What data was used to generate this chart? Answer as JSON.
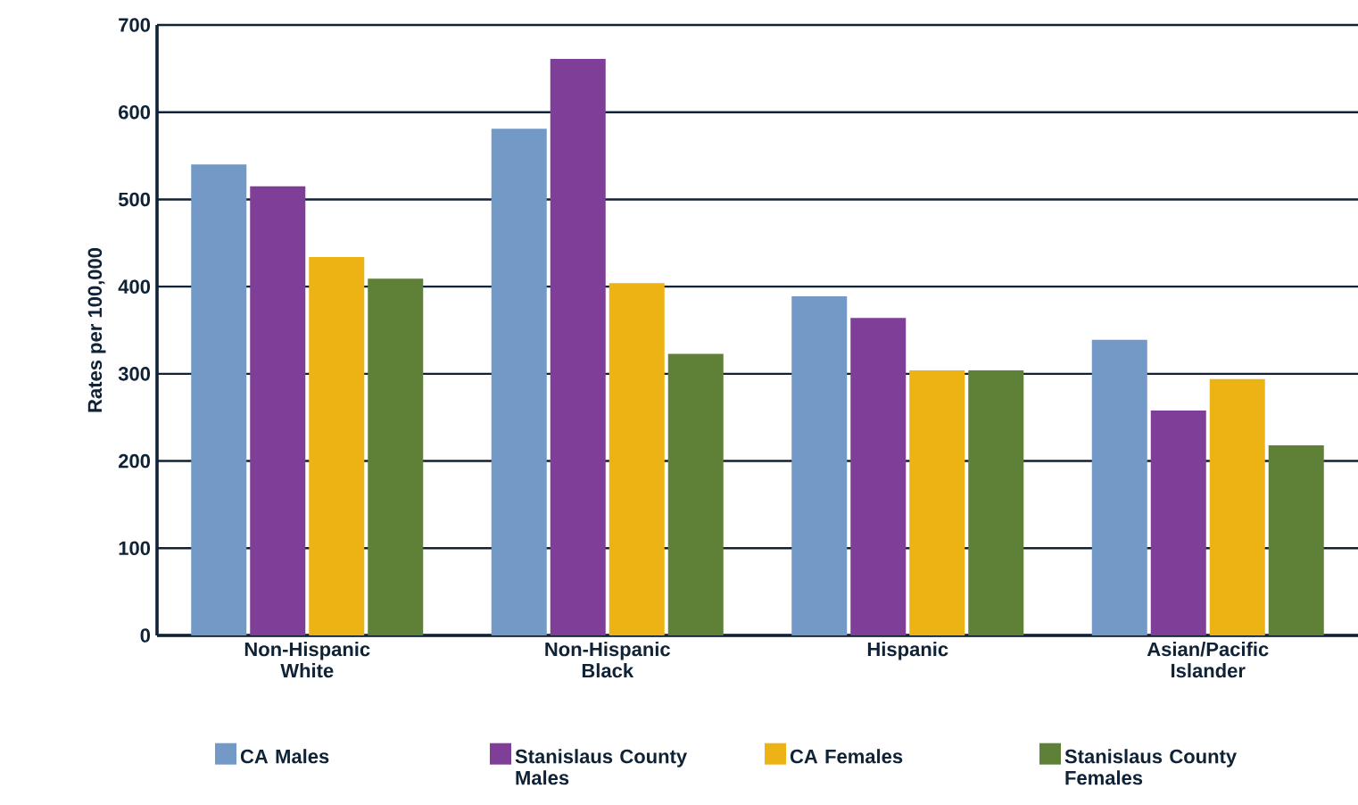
{
  "chart_data": {
    "type": "bar",
    "ylabel": "Rates per 100,000",
    "categories": [
      "Non-Hispanic White",
      "Non-Hispanic Black",
      "Hispanic",
      "Asian/Pacific Islander"
    ],
    "series": [
      {
        "name": "CA Males",
        "color": "#7399c6",
        "values": [
          540,
          581,
          389,
          339
        ]
      },
      {
        "name": "Stanislaus County Males",
        "color": "#7f3f98",
        "values": [
          515,
          661,
          364,
          258
        ]
      },
      {
        "name": "CA Females",
        "color": "#edb214",
        "values": [
          434,
          404,
          304,
          294
        ]
      },
      {
        "name": "Stanislaus County Females",
        "color": "#5f8137",
        "values": [
          409,
          323,
          304,
          218
        ]
      }
    ],
    "ylim": [
      0,
      700
    ],
    "yticks": [
      0,
      100,
      200,
      300,
      400,
      500,
      600,
      700
    ],
    "grid": "y",
    "legend": "bottom"
  }
}
